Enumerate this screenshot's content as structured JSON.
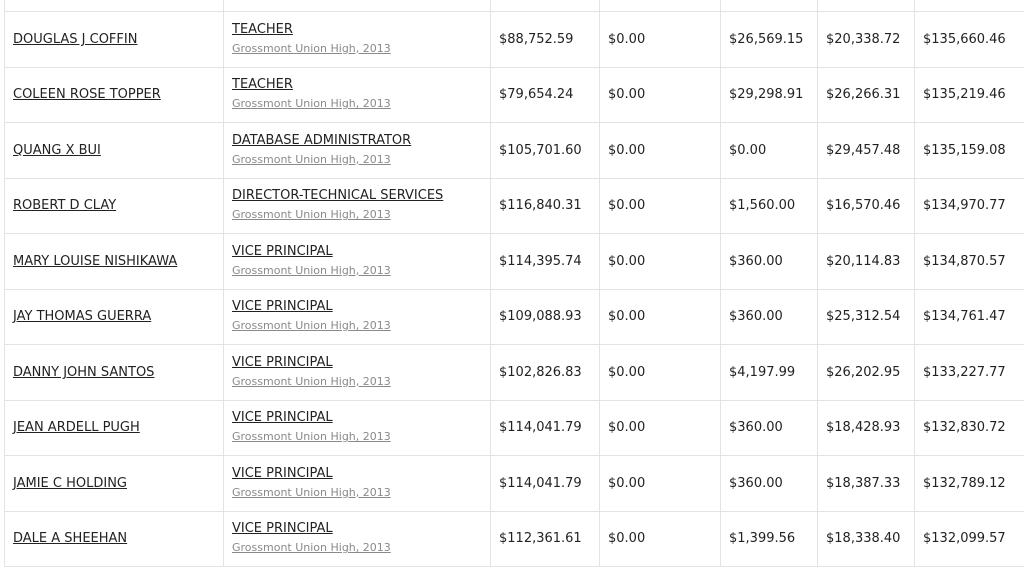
{
  "rows": [
    {
      "name": "DOUGLAS J COFFIN",
      "title": "TEACHER",
      "agency": "Grossmont Union High, 2013",
      "regular_pay": "$88,752.59",
      "overtime_pay": "$0.00",
      "other_pay": "$26,569.15",
      "benefits": "$20,338.72",
      "total": "$135,660.46"
    },
    {
      "name": "COLEEN ROSE TOPPER",
      "title": "TEACHER",
      "agency": "Grossmont Union High, 2013",
      "regular_pay": "$79,654.24",
      "overtime_pay": "$0.00",
      "other_pay": "$29,298.91",
      "benefits": "$26,266.31",
      "total": "$135,219.46"
    },
    {
      "name": "QUANG X BUI",
      "title": "DATABASE ADMINISTRATOR",
      "agency": "Grossmont Union High, 2013",
      "regular_pay": "$105,701.60",
      "overtime_pay": "$0.00",
      "other_pay": "$0.00",
      "benefits": "$29,457.48",
      "total": "$135,159.08"
    },
    {
      "name": "ROBERT D CLAY",
      "title": "DIRECTOR-TECHNICAL SERVICES",
      "agency": "Grossmont Union High, 2013",
      "regular_pay": "$116,840.31",
      "overtime_pay": "$0.00",
      "other_pay": "$1,560.00",
      "benefits": "$16,570.46",
      "total": "$134,970.77"
    },
    {
      "name": "MARY LOUISE NISHIKAWA",
      "title": "VICE PRINCIPAL",
      "agency": "Grossmont Union High, 2013",
      "regular_pay": "$114,395.74",
      "overtime_pay": "$0.00",
      "other_pay": "$360.00",
      "benefits": "$20,114.83",
      "total": "$134,870.57"
    },
    {
      "name": "JAY THOMAS GUERRA",
      "title": "VICE PRINCIPAL",
      "agency": "Grossmont Union High, 2013",
      "regular_pay": "$109,088.93",
      "overtime_pay": "$0.00",
      "other_pay": "$360.00",
      "benefits": "$25,312.54",
      "total": "$134,761.47"
    },
    {
      "name": "DANNY JOHN SANTOS",
      "title": "VICE PRINCIPAL",
      "agency": "Grossmont Union High, 2013",
      "regular_pay": "$102,826.83",
      "overtime_pay": "$0.00",
      "other_pay": "$4,197.99",
      "benefits": "$26,202.95",
      "total": "$133,227.77"
    },
    {
      "name": "JEAN ARDELL PUGH",
      "title": "VICE PRINCIPAL",
      "agency": "Grossmont Union High, 2013",
      "regular_pay": "$114,041.79",
      "overtime_pay": "$0.00",
      "other_pay": "$360.00",
      "benefits": "$18,428.93",
      "total": "$132,830.72"
    },
    {
      "name": "JAMIE C HOLDING",
      "title": "VICE PRINCIPAL",
      "agency": "Grossmont Union High, 2013",
      "regular_pay": "$114,041.79",
      "overtime_pay": "$0.00",
      "other_pay": "$360.00",
      "benefits": "$18,387.33",
      "total": "$132,789.12"
    },
    {
      "name": "DALE A SHEEHAN",
      "title": "VICE PRINCIPAL",
      "agency": "Grossmont Union High, 2013",
      "regular_pay": "$112,361.61",
      "overtime_pay": "$0.00",
      "other_pay": "$1,399.56",
      "benefits": "$18,338.40",
      "total": "$132,099.57"
    }
  ]
}
